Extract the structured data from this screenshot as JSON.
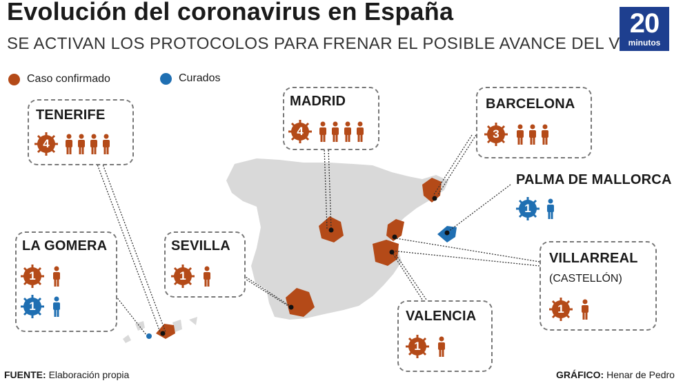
{
  "header": {
    "title": "Evolución del coronavirus en España",
    "subtitle": "SE ACTIVAN LOS PROTOCOLOS PARA FRENAR EL POSIBLE AVANCE DEL VIRUS"
  },
  "logo": {
    "number": "20",
    "word": "minutos"
  },
  "legend": {
    "confirmed": "Caso confirmado",
    "cured": "Curados"
  },
  "colors": {
    "confirmed": "#b44a18",
    "cured": "#1f6fb2",
    "map": "#d9d9d9",
    "brand": "#1e3f8f"
  },
  "locations": {
    "tenerife": {
      "name": "TENERIFE",
      "confirmed": "4"
    },
    "madrid": {
      "name": "MADRID",
      "confirmed": "4"
    },
    "barcelona": {
      "name": "BARCELONA",
      "confirmed": "3"
    },
    "palma": {
      "name": "PALMA DE MALLORCA",
      "cured": "1"
    },
    "gomera": {
      "name": "LA GOMERA",
      "confirmed": "1",
      "cured": "1"
    },
    "sevilla": {
      "name": "SEVILLA",
      "confirmed": "1"
    },
    "villarreal": {
      "name": "VILLARREAL",
      "sub": "(CASTELLÓN)",
      "confirmed": "1"
    },
    "valencia": {
      "name": "VALENCIA",
      "confirmed": "1"
    }
  },
  "footer": {
    "source_label": "FUENTE:",
    "source": "Elaboración propia",
    "credit_label": "GRÁFICO:",
    "credit": "Henar de Pedro"
  }
}
